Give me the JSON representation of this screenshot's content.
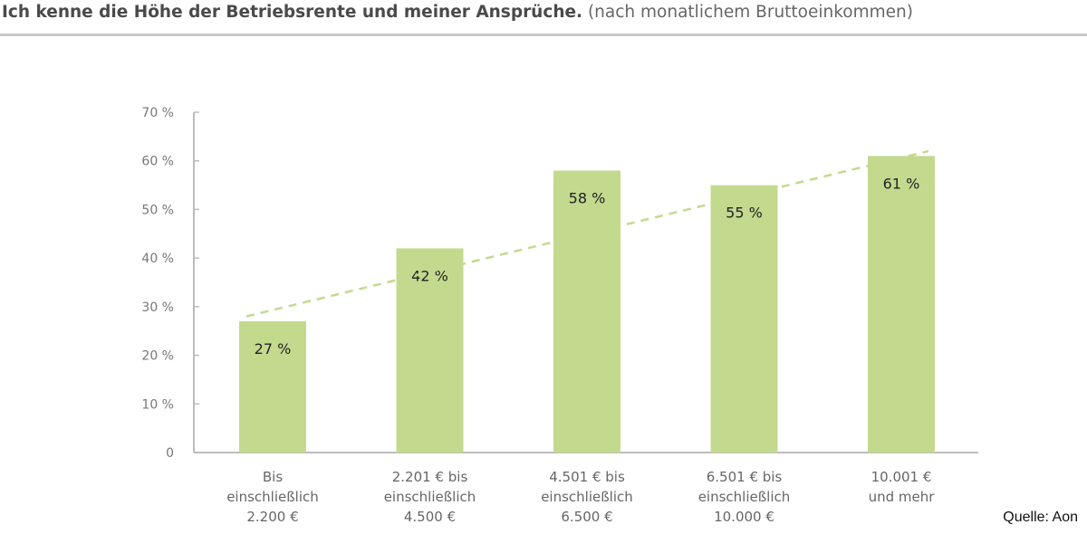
{
  "header": {
    "title": "Ich kenne die Höhe der Betriebsrente und meiner Ansprüche.",
    "subtitle": "(nach monatlichem Bruttoeinkommen)"
  },
  "source": "Quelle: Aon",
  "chart_data": {
    "type": "bar",
    "title": "Ich kenne die Höhe der Betriebsrente und meiner Ansprüche.",
    "subtitle": "(nach monatlichem Bruttoeinkommen)",
    "categories": [
      [
        "Bis",
        "einschließlich",
        "2.200 €"
      ],
      [
        "2.201 € bis",
        "einschließlich",
        "4.500 €"
      ],
      [
        "4.501 € bis",
        "einschließlich",
        "6.500 €"
      ],
      [
        "6.501 € bis",
        "einschließlich",
        "10.000 €"
      ],
      [
        "10.001 €",
        "und mehr"
      ]
    ],
    "values": [
      27,
      42,
      58,
      55,
      61
    ],
    "data_labels": [
      "27 %",
      "42 %",
      "58 %",
      "55 %",
      "61 %"
    ],
    "ylim": [
      0,
      70
    ],
    "yticks": [
      0,
      10,
      20,
      30,
      40,
      50,
      60,
      70
    ],
    "ytick_labels": [
      "0",
      "10 %",
      "20 %",
      "30 %",
      "40 %",
      "50 %",
      "60 %",
      "70 %"
    ],
    "xlabel": "",
    "ylabel": "",
    "grid": false,
    "trendline": {
      "style": "dashed",
      "from": 28,
      "to": 62
    },
    "colors": {
      "bar": "#c3da8e",
      "trend": "#c3da8e",
      "axis": "#bdbdbd"
    }
  }
}
